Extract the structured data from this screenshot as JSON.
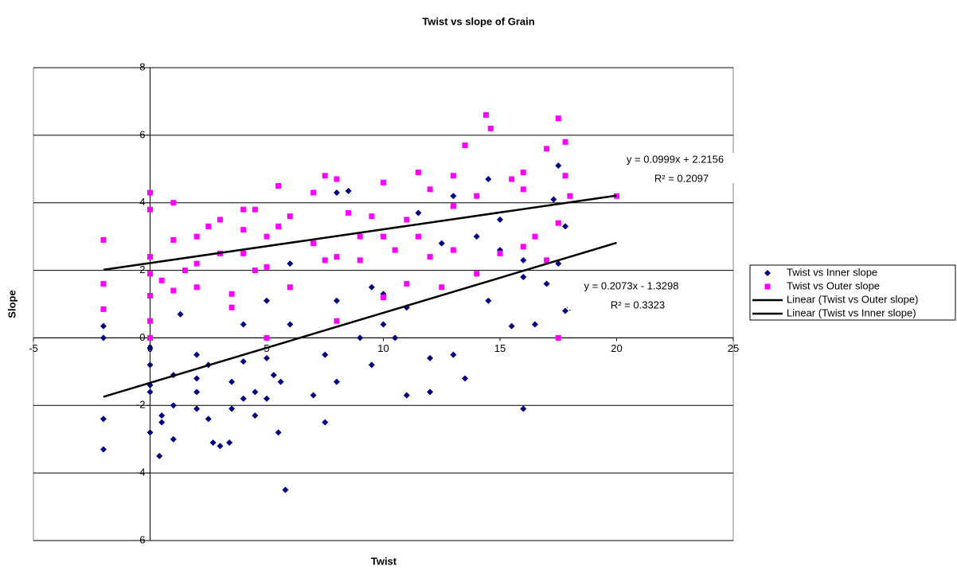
{
  "chart_data": {
    "type": "scatter",
    "title": "Twist vs slope of Grain",
    "x_label": "Twist",
    "y_label": "Slope",
    "xlim": [
      -5,
      25
    ],
    "xticks": [
      -5,
      0,
      5,
      10,
      15,
      20,
      25
    ],
    "ylim": [
      -6,
      8
    ],
    "yticks": [
      -6,
      -4,
      -2,
      0,
      2,
      4,
      6,
      8
    ],
    "grid": true,
    "legend": "right",
    "series": [
      {
        "name": "Twist vs Inner slope",
        "color": "#000080",
        "marker": "diamond",
        "x": [
          -2,
          -2,
          -2,
          -2,
          0,
          0,
          0,
          0,
          0,
          0.4,
          0.5,
          0.5,
          1,
          1,
          1,
          1.3,
          2,
          2,
          2,
          2,
          2.5,
          2.5,
          2.7,
          3,
          3.4,
          3.5,
          3.5,
          4,
          4,
          4,
          4.5,
          4.5,
          5,
          5,
          5,
          5.3,
          5.5,
          5.8,
          5.6,
          6,
          6,
          7,
          7.5,
          7.5,
          8,
          8,
          8,
          8.5,
          9,
          9.5,
          9.5,
          10,
          10,
          10.5,
          11,
          11,
          11.5,
          12,
          12,
          12.5,
          13,
          13,
          13.5,
          14,
          14.5,
          14.5,
          15,
          15,
          15.5,
          16,
          16,
          16,
          16.5,
          17,
          17.3,
          17.5,
          17.5,
          17.8,
          17.8,
          18,
          20
        ],
        "values": [
          0.35,
          0,
          -2.4,
          -3.3,
          -0.3,
          -0.8,
          -1.4,
          -1.6,
          -2.8,
          -3.5,
          -2.3,
          -2.5,
          -1.1,
          -2,
          -3,
          0.7,
          -0.5,
          -1.2,
          -1.6,
          -2.1,
          -0.8,
          -2.4,
          -3.1,
          -3.2,
          -3.1,
          -2.1,
          -1.3,
          0.4,
          -0.7,
          -1.8,
          -1.6,
          -2.3,
          -0.6,
          -1.8,
          1.1,
          -1.1,
          -2.8,
          -4.5,
          -1.3,
          2.2,
          0.4,
          -1.7,
          -0.5,
          -2.5,
          1.1,
          -1.3,
          4.3,
          4.35,
          0,
          1.5,
          -0.8,
          1.3,
          0.4,
          0,
          0.9,
          -1.7,
          3.7,
          -0.6,
          -1.6,
          2.8,
          4.2,
          -0.5,
          -1.2,
          3,
          4.7,
          1.1,
          3.5,
          2.6,
          0.35,
          -2.1,
          1.8,
          2.3,
          0.4,
          1.6,
          4.1,
          5.1,
          2.2,
          0.8,
          3.3,
          0.9,
          4.7
        ]
      },
      {
        "name": "Twist vs Outer slope",
        "color": "#ff00ff",
        "marker": "square",
        "x": [
          -2,
          -2,
          -2,
          0,
          0,
          0,
          0,
          0,
          0,
          0,
          0.5,
          1,
          1,
          1,
          1.5,
          2,
          2,
          2,
          2.5,
          3,
          3,
          3.5,
          3.5,
          4,
          4,
          4,
          4.5,
          4.5,
          5,
          5,
          5,
          5.5,
          5.5,
          6,
          6,
          7,
          7,
          7.5,
          7.5,
          8,
          8,
          8,
          8.5,
          9,
          9,
          9.5,
          10,
          10,
          10,
          10.5,
          11,
          11,
          11.5,
          11.5,
          12,
          12,
          12.5,
          13,
          13,
          13,
          13.5,
          14,
          14,
          14.4,
          14.6,
          15,
          15.5,
          16,
          16,
          16,
          16.5,
          17,
          17,
          17.5,
          17.5,
          17.5,
          17.8,
          17.8,
          18,
          20
        ],
        "values": [
          2.9,
          1.6,
          0.85,
          4.3,
          3.8,
          2.4,
          1.9,
          1.25,
          0.5,
          0,
          1.7,
          4,
          2.9,
          1.4,
          2,
          3,
          2.2,
          1.5,
          3.3,
          3.5,
          2.5,
          1.3,
          0.9,
          3.8,
          3.2,
          2.5,
          3.8,
          2,
          3,
          2.1,
          0,
          4.5,
          3.3,
          3.6,
          1.5,
          4.3,
          2.8,
          4.8,
          2.3,
          4.7,
          2.4,
          0.5,
          3.7,
          3,
          2.3,
          3.6,
          4.6,
          3,
          1.2,
          2.6,
          3.5,
          1.6,
          4.9,
          3,
          4.4,
          2.4,
          1.5,
          4.8,
          3.9,
          2.6,
          5.7,
          4.2,
          1.9,
          6.6,
          6.2,
          2.5,
          4.7,
          4.9,
          4.4,
          2.7,
          3,
          5.6,
          2.3,
          6.5,
          0,
          3.4,
          5.8,
          4.8,
          4.2,
          4.2
        ]
      },
      {
        "name": "Linear (Twist vs Outer slope)",
        "color": "#000000",
        "marker": "line",
        "x": [
          -2,
          20
        ],
        "values": [
          2.0158,
          4.2136
        ]
      },
      {
        "name": "Linear (Twist vs Inner slope)",
        "color": "#000000",
        "marker": "line",
        "x": [
          -2,
          20
        ],
        "values": [
          -1.7444,
          2.8162
        ]
      }
    ],
    "annotations": [
      {
        "equation": "y = 0.0999x + 2.2156",
        "r2": "R² = 0.2097"
      },
      {
        "equation": "y = 0.2073x - 1.3298",
        "r2": "R² = 0.3323"
      }
    ]
  }
}
